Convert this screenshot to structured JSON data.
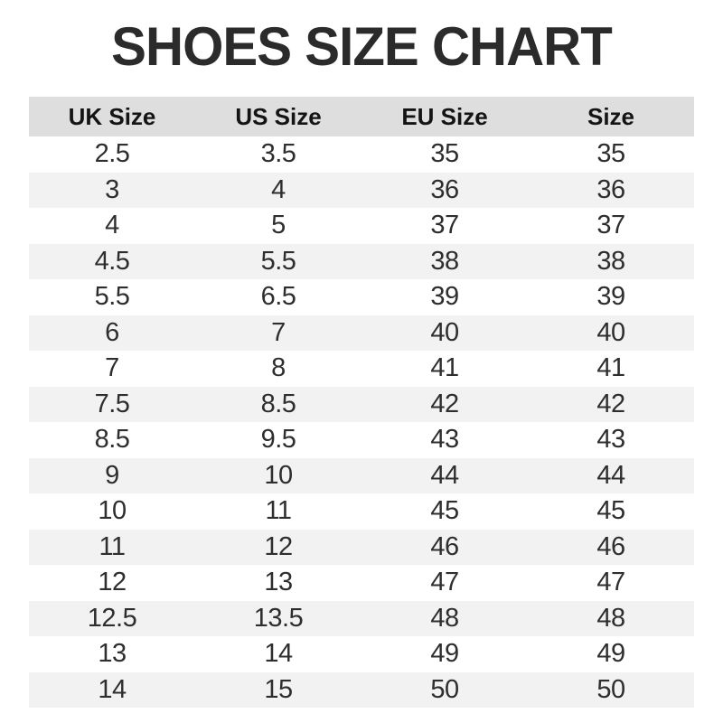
{
  "title": "SHOES SIZE CHART",
  "colors": {
    "page-bg": "#ffffff",
    "title-color": "#2b2b2b",
    "header-bg": "#dedede",
    "header-text": "#141414",
    "stripe-bg": "#f2f2f2",
    "cell-text": "#2e2e2e"
  },
  "chart_data": {
    "type": "table",
    "title": "SHOES SIZE CHART",
    "columns": [
      "UK Size",
      "US Size",
      "EU Size",
      "Size"
    ],
    "rows": [
      [
        "2.5",
        "3.5",
        "35",
        "35"
      ],
      [
        "3",
        "4",
        "36",
        "36"
      ],
      [
        "4",
        "5",
        "37",
        "37"
      ],
      [
        "4.5",
        "5.5",
        "38",
        "38"
      ],
      [
        "5.5",
        "6.5",
        "39",
        "39"
      ],
      [
        "6",
        "7",
        "40",
        "40"
      ],
      [
        "7",
        "8",
        "41",
        "41"
      ],
      [
        "7.5",
        "8.5",
        "42",
        "42"
      ],
      [
        "8.5",
        "9.5",
        "43",
        "43"
      ],
      [
        "9",
        "10",
        "44",
        "44"
      ],
      [
        "10",
        "11",
        "45",
        "45"
      ],
      [
        "11",
        "12",
        "46",
        "46"
      ],
      [
        "12",
        "13",
        "47",
        "47"
      ],
      [
        "12.5",
        "13.5",
        "48",
        "48"
      ],
      [
        "13",
        "14",
        "49",
        "49"
      ],
      [
        "14",
        "15",
        "50",
        "50"
      ]
    ],
    "layout": {
      "stripe_pattern": "even rows shaded",
      "alignment": "center"
    }
  }
}
